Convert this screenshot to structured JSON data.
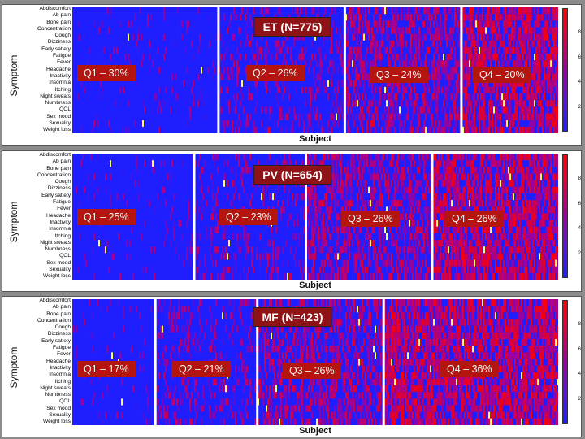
{
  "chart_data": [
    {
      "type": "heatmap",
      "title": "ET (N=775)",
      "xlabel": "Subject",
      "ylabel": "Symptom",
      "symptoms": [
        "Abdiscomfort",
        "Ab pain",
        "Bone pain",
        "Concentration",
        "Cough",
        "Dizziness",
        "Early satiety",
        "Fatigue",
        "Fever",
        "Headache",
        "Inactivity",
        "Insomnia",
        "Itching",
        "Night sweats",
        "Numbness",
        "QOL",
        "Sex mood",
        "Sexuality",
        "Weight loss"
      ],
      "colorbar_ticks": [
        "8",
        "6",
        "4",
        "2"
      ],
      "colorbar_values": [
        8,
        6,
        4,
        2
      ],
      "colorbar_range": [
        0,
        10
      ],
      "quartiles": [
        {
          "label": "Q1 – 30%",
          "share": 30
        },
        {
          "label": "Q2 – 26%",
          "share": 26
        },
        {
          "label": "Q3 – 24%",
          "share": 24
        },
        {
          "label": "Q4 – 20%",
          "share": 20
        }
      ]
    },
    {
      "type": "heatmap",
      "title": "PV (N=654)",
      "xlabel": "Subject",
      "ylabel": "Symptom",
      "symptoms": [
        "Abdiscomfort",
        "Ab pain",
        "Bone pain",
        "Concentration",
        "Cough",
        "Dizziness",
        "Early satiety",
        "Fatigue",
        "Fever",
        "Headache",
        "Inactivity",
        "Insomnia",
        "Itching",
        "Night sweats",
        "Numbness",
        "QOL",
        "Sex mood",
        "Sexuality",
        "Weight loss"
      ],
      "colorbar_ticks": [
        "8",
        "6",
        "4",
        "2"
      ],
      "colorbar_values": [
        8,
        6,
        4,
        2
      ],
      "colorbar_range": [
        0,
        10
      ],
      "quartiles": [
        {
          "label": "Q1 – 25%",
          "share": 25
        },
        {
          "label": "Q2 – 23%",
          "share": 23
        },
        {
          "label": "Q3 – 26%",
          "share": 26
        },
        {
          "label": "Q4 – 26%",
          "share": 26
        }
      ]
    },
    {
      "type": "heatmap",
      "title": "MF (N=423)",
      "xlabel": "Subject",
      "ylabel": "Symptom",
      "symptoms": [
        "Abdiscomfort",
        "Ab pain",
        "Bone pain",
        "Concentration",
        "Cough",
        "Dizziness",
        "Early satiety",
        "Fatigue",
        "Fever",
        "Headache",
        "Inactivity",
        "Insomnia",
        "Itching",
        "Night sweats",
        "Numbness",
        "QOL",
        "Sex mood",
        "Sexuality",
        "Weight loss"
      ],
      "colorbar_ticks": [
        "8",
        "6",
        "4",
        "2"
      ],
      "colorbar_values": [
        8,
        6,
        4,
        2
      ],
      "colorbar_range": [
        0,
        10
      ],
      "quartiles": [
        {
          "label": "Q1 – 17%",
          "share": 17
        },
        {
          "label": "Q2 – 21%",
          "share": 21
        },
        {
          "label": "Q3 – 26%",
          "share": 26
        },
        {
          "label": "Q4 – 36%",
          "share": 36
        }
      ]
    }
  ],
  "colors": {
    "low": "#1e1eff",
    "mid": "#9a00a0",
    "high": "#ff0000",
    "peak": "#ffff66",
    "title_box": "#8e1216",
    "quartile_box": "#b5150f",
    "divider": "#ffffff"
  }
}
